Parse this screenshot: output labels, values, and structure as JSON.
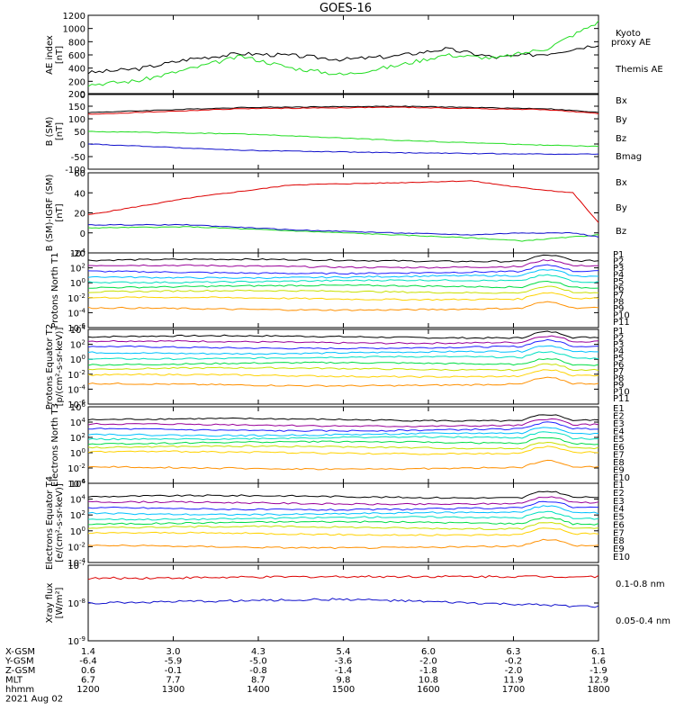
{
  "title": "GOES-16",
  "colors": {
    "black": "#000000",
    "green": "#22dd22",
    "blue": "#1010cc",
    "red": "#dd0000",
    "p": [
      "#000000",
      "#990099",
      "#2020ff",
      "#00c0ff",
      "#00e0c0",
      "#00dd44",
      "#c8e000",
      "#ffd200",
      "#ff9000",
      "#ee0000",
      "#cc0000"
    ]
  },
  "chart_data": [
    {
      "type": "line",
      "ylabel": "AE index [nT]",
      "ylim": [
        0,
        1200
      ],
      "yticks": [
        "0",
        "200",
        "400",
        "600",
        "800",
        "1000",
        "1200"
      ],
      "legend": [
        "Kyoto proxy AE",
        "Themis AE"
      ],
      "series": [
        {
          "name": "Themis AE",
          "color": "black",
          "x": [
            0,
            0.1,
            0.2,
            0.3,
            0.4,
            0.5,
            0.6,
            0.7,
            0.8,
            0.9,
            1.0
          ],
          "y": [
            330,
            390,
            540,
            620,
            590,
            530,
            580,
            690,
            560,
            620,
            760
          ]
        },
        {
          "name": "Kyoto proxy AE",
          "color": "green",
          "x": [
            0,
            0.1,
            0.2,
            0.3,
            0.4,
            0.5,
            0.6,
            0.7,
            0.8,
            0.9,
            1.0
          ],
          "y": [
            150,
            210,
            390,
            580,
            400,
            300,
            430,
            600,
            550,
            700,
            1100
          ]
        }
      ]
    },
    {
      "type": "line",
      "ylabel": "B (SM) [nT]",
      "ylim": [
        -100,
        200
      ],
      "yticks": [
        "-100",
        "-50",
        "0",
        "50",
        "100",
        "150",
        "200"
      ],
      "legend": [
        "Bx",
        "By",
        "Bz",
        "Bmag"
      ],
      "series": [
        {
          "name": "Bmag",
          "color": "black",
          "x": [
            0,
            0.3,
            0.6,
            0.9,
            1.0
          ],
          "y": [
            125,
            145,
            150,
            140,
            125
          ]
        },
        {
          "name": "Bz",
          "color": "red",
          "x": [
            0,
            0.3,
            0.6,
            0.9,
            1.0
          ],
          "y": [
            118,
            140,
            146,
            136,
            120
          ]
        },
        {
          "name": "By",
          "color": "green",
          "x": [
            0,
            0.3,
            0.6,
            0.9,
            1.0
          ],
          "y": [
            50,
            40,
            15,
            -5,
            -10
          ]
        },
        {
          "name": "Bx",
          "color": "blue",
          "x": [
            0,
            0.3,
            0.6,
            0.9,
            1.0
          ],
          "y": [
            0,
            -25,
            -35,
            -40,
            -40
          ]
        }
      ]
    },
    {
      "type": "line",
      "ylabel": "B (SM)-IGRF (SM) [nT]",
      "ylim": [
        -20,
        60
      ],
      "yticks": [
        "-20",
        "0",
        "20",
        "40",
        "60"
      ],
      "legend": [
        "Bx",
        "By",
        "Bz"
      ],
      "series": [
        {
          "name": "Bz",
          "color": "red",
          "x": [
            0,
            0.2,
            0.4,
            0.6,
            0.75,
            0.85,
            0.95,
            1.0
          ],
          "y": [
            18,
            35,
            48,
            50,
            52,
            45,
            40,
            10
          ]
        },
        {
          "name": "By",
          "color": "green",
          "x": [
            0,
            0.2,
            0.4,
            0.6,
            0.75,
            0.85,
            0.95,
            1.0
          ],
          "y": [
            5,
            6,
            2,
            -2,
            -5,
            -8,
            -4,
            -2
          ]
        },
        {
          "name": "Bx",
          "color": "blue",
          "x": [
            0,
            0.2,
            0.4,
            0.6,
            0.75,
            0.85,
            0.95,
            1.0
          ],
          "y": [
            8,
            8,
            3,
            0,
            -2,
            0,
            0,
            -4
          ]
        }
      ]
    },
    {
      "type": "line",
      "ylabel": "Protons North T1",
      "ylim": [
        -6,
        4
      ],
      "log": true,
      "yticks": [
        "10^4",
        "10^2",
        "10^0",
        "10^-2",
        "10^-4",
        "10^-6"
      ],
      "legend": [
        "P1",
        "P2",
        "P3",
        "P4",
        "P5",
        "P6",
        "P7",
        "P8",
        "P9",
        "P10",
        "P11"
      ],
      "levels": [
        3.0,
        2.2,
        1.4,
        0.8,
        0.2,
        -0.5,
        -1.2,
        -2.1,
        -3.5
      ]
    },
    {
      "type": "line",
      "ylabel": "Protons Equator T2 [p/(cm²-s-sr-keV)]",
      "ylim": [
        -6,
        4
      ],
      "log": true,
      "yticks": [
        "10^4",
        "10^2",
        "10^0",
        "10^-2",
        "10^-4",
        "10^-6"
      ],
      "legend": [
        "P1",
        "P2",
        "P3",
        "P4",
        "P5",
        "P6",
        "P7",
        "P8",
        "P9",
        "P10",
        "P11"
      ],
      "levels": [
        3.0,
        2.3,
        1.6,
        0.9,
        0.2,
        -0.6,
        -1.3,
        -2.2,
        -3.4
      ]
    },
    {
      "type": "line",
      "ylabel": "Electrons North T3",
      "ylim": [
        -4,
        6
      ],
      "log": true,
      "yticks": [
        "10^6",
        "10^4",
        "10^2",
        "10^0",
        "10^-2",
        "10^-4"
      ],
      "legend": [
        "E1",
        "E2",
        "E3",
        "E4",
        "E5",
        "E6",
        "E7",
        "E8",
        "E9",
        "E10"
      ],
      "levels": [
        4.3,
        3.6,
        3.0,
        2.4,
        1.9,
        1.3,
        0.7,
        0.0,
        -2.0
      ]
    },
    {
      "type": "line",
      "ylabel": "Electrons Equator T4 [e/(cm²-s-sr-keV)]",
      "ylim": [
        -4,
        6
      ],
      "log": true,
      "yticks": [
        "10^6",
        "10^4",
        "10^2",
        "10^0",
        "10^-2",
        "10^-4"
      ],
      "legend": [
        "E1",
        "E2",
        "E3",
        "E4",
        "E5",
        "E6",
        "E7",
        "E8",
        "E9",
        "E10"
      ],
      "levels": [
        4.3,
        3.5,
        2.8,
        2.2,
        1.6,
        1.0,
        0.4,
        -0.4,
        -2.0
      ]
    },
    {
      "type": "line",
      "ylabel": "Xray flux [W/m²]",
      "ylim": [
        -9,
        -7
      ],
      "log": true,
      "yticks": [
        "10^-7",
        "10^-8",
        "10^-9"
      ],
      "legend": [
        "0.1-0.8 nm",
        "0.05-0.4 nm"
      ],
      "series": [
        {
          "name": "0.1-0.8 nm",
          "color": "red",
          "x": [
            0,
            0.5,
            1.0
          ],
          "y": [
            -7.35,
            -7.3,
            -7.3
          ]
        },
        {
          "name": "0.05-0.4 nm",
          "color": "blue",
          "x": [
            0,
            0.5,
            1.0
          ],
          "y": [
            -8.0,
            -7.9,
            -8.1
          ]
        }
      ]
    }
  ],
  "xaxis": {
    "rows": [
      {
        "label": "X-GSM",
        "values": [
          "1.4",
          "3.0",
          "4.3",
          "5.4",
          "6.0",
          "6.3",
          "6.1"
        ]
      },
      {
        "label": "Y-GSM",
        "values": [
          "-6.4",
          "-5.9",
          "-5.0",
          "-3.6",
          "-2.0",
          "-0.2",
          "1.6"
        ]
      },
      {
        "label": "Z-GSM",
        "values": [
          "0.6",
          "-0.1",
          "-0.8",
          "-1.4",
          "-1.8",
          "-2.0",
          "-1.9"
        ]
      },
      {
        "label": "MLT",
        "values": [
          "6.7",
          "7.7",
          "8.7",
          "9.8",
          "10.8",
          "11.9",
          "12.9"
        ]
      },
      {
        "label": "hhmm",
        "values": [
          "1200",
          "1300",
          "1400",
          "1500",
          "1600",
          "1700",
          "1800"
        ]
      }
    ],
    "date": "2021 Aug 02"
  }
}
